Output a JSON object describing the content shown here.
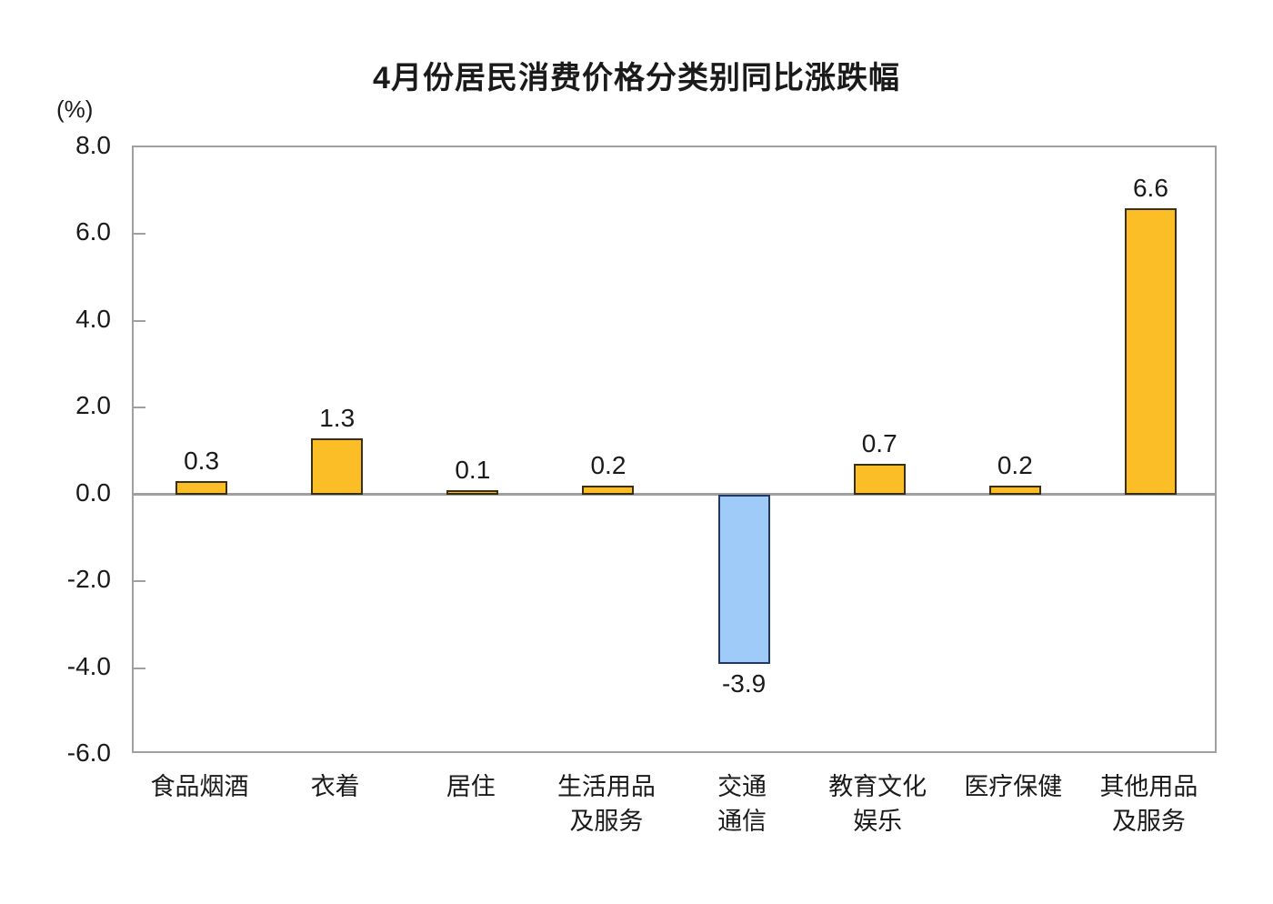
{
  "title": "4月份居民消费价格分类别同比涨跌幅",
  "axis_unit_label": "(%)",
  "colors": {
    "positive_fill": "#FCBE26",
    "positive_border": "#3a2f10",
    "negative_fill": "#9ECBF8",
    "negative_border": "#1F3864",
    "axis_gray": "#a0a0a0",
    "text": "#1a1a1a"
  },
  "chart_data": {
    "type": "bar",
    "title": "4月份居民消费价格分类别同比涨跌幅",
    "ylabel": "(%)",
    "xlabel": "",
    "grid": false,
    "legend": "none",
    "ylim": [
      -6.0,
      8.0
    ],
    "ytick_values": [
      8.0,
      6.0,
      4.0,
      2.0,
      0.0,
      -2.0,
      -4.0,
      -6.0
    ],
    "ytick_labels": [
      "8.0",
      "6.0",
      "4.0",
      "2.0",
      "0.0",
      "-2.0",
      "-4.0",
      "-6.0"
    ],
    "categories": [
      "食品烟酒",
      "衣着",
      "居住",
      "生活用品及服务",
      "交通通信",
      "教育文化娱乐",
      "医疗保健",
      "其他用品及服务"
    ],
    "category_display_lines": [
      [
        "食品烟酒"
      ],
      [
        "衣着"
      ],
      [
        "居住"
      ],
      [
        "生活用品",
        "及服务"
      ],
      [
        "交通",
        "通信"
      ],
      [
        "教育文化",
        "娱乐"
      ],
      [
        "医疗保健"
      ],
      [
        "其他用品",
        "及服务"
      ]
    ],
    "values": [
      0.3,
      1.3,
      0.1,
      0.2,
      -3.9,
      0.7,
      0.2,
      6.6
    ],
    "value_labels": [
      "0.3",
      "1.3",
      "0.1",
      "0.2",
      "-3.9",
      "0.7",
      "0.2",
      "6.6"
    ]
  }
}
